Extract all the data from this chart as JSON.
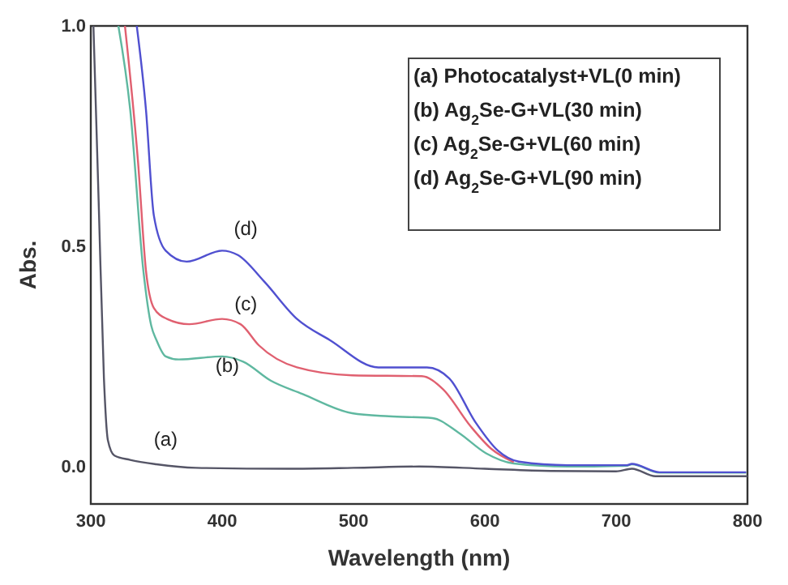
{
  "chart_data": {
    "type": "line",
    "xlabel": "Wavelength (nm)",
    "ylabel": "Abs.",
    "xlim": [
      300,
      800
    ],
    "ylim": [
      -0.085,
      1.0
    ],
    "xticks": [
      300,
      400,
      500,
      600,
      700,
      800
    ],
    "yticks": [
      {
        "value": 0,
        "label": "0.0"
      },
      {
        "value": 0.5,
        "label": "0.5"
      },
      {
        "value": 1,
        "label": "1.0"
      }
    ],
    "grid": false,
    "marker": "none",
    "line_style": "solid",
    "series": [
      {
        "name": "(a)",
        "color": "#555566",
        "x": [
          302,
          306,
          310,
          313,
          318,
          330,
          350,
          380,
          450,
          500,
          550,
          600,
          650,
          700,
          712,
          730,
          800
        ],
        "values": [
          1.0,
          0.6,
          0.2,
          0.06,
          0.025,
          0.015,
          0.005,
          -0.003,
          -0.005,
          -0.003,
          0.0,
          -0.005,
          -0.01,
          -0.011,
          -0.005,
          -0.022,
          -0.022
        ]
      },
      {
        "name": "(b)",
        "color": "#5fb8a0",
        "x": [
          321,
          330,
          340,
          346,
          350,
          357,
          367,
          400,
          416,
          437,
          461,
          499,
          527,
          560,
          580,
          601,
          622,
          663,
          708,
          712,
          733,
          799
        ],
        "values": [
          1.0,
          0.81,
          0.445,
          0.32,
          0.287,
          0.25,
          0.243,
          0.25,
          0.238,
          0.195,
          0.165,
          0.121,
          0.114,
          0.11,
          0.077,
          0.03,
          0.007,
          0.0,
          0.002,
          0.005,
          -0.014,
          -0.014
        ]
      },
      {
        "name": "(c)",
        "color": "#e06070",
        "x": [
          326,
          336,
          342,
          348,
          358,
          375,
          400,
          414,
          428,
          457,
          499,
          552,
          568,
          589,
          605,
          622
        ],
        "values": [
          1.0,
          0.69,
          0.445,
          0.36,
          0.335,
          0.323,
          0.335,
          0.323,
          0.275,
          0.225,
          0.207,
          0.205,
          0.176,
          0.092,
          0.04,
          0.01
        ]
      },
      {
        "name": "(d)",
        "color": "#5050d0",
        "x": [
          335,
          342,
          348,
          357,
          373,
          400,
          412,
          432,
          457,
          482,
          519,
          556,
          573,
          593,
          610,
          626,
          663,
          708,
          712,
          733,
          799
        ],
        "values": [
          1.0,
          0.81,
          0.57,
          0.49,
          0.465,
          0.49,
          0.48,
          0.42,
          0.335,
          0.287,
          0.225,
          0.225,
          0.2,
          0.1,
          0.036,
          0.011,
          0.003,
          0.003,
          0.006,
          -0.013,
          -0.013
        ]
      }
    ],
    "annotations": [
      "(a) Photocatalyst+VL(0 min)",
      "(b) Ag$_{2}$Se-G+VL(30 min)",
      "(c) Ag$_{2}$Se-G+VL(60 min)",
      "(d) Ag$_{2}$Se-G+VL(90 min)"
    ]
  }
}
